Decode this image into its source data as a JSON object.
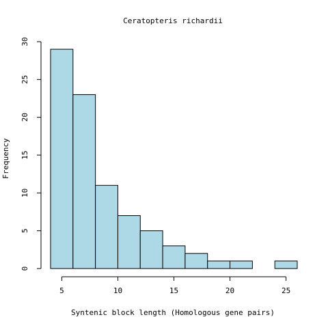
{
  "chart_data": {
    "type": "bar",
    "title": "Ceratopteris richardii",
    "xlabel": "Syntenic block length (Homologous gene pairs)",
    "ylabel": "Frequency",
    "bins": [
      {
        "from": 4,
        "to": 6,
        "count": 29
      },
      {
        "from": 6,
        "to": 8,
        "count": 23
      },
      {
        "from": 8,
        "to": 10,
        "count": 11
      },
      {
        "from": 10,
        "to": 12,
        "count": 7
      },
      {
        "from": 12,
        "to": 14,
        "count": 5
      },
      {
        "from": 14,
        "to": 16,
        "count": 3
      },
      {
        "from": 16,
        "to": 18,
        "count": 2
      },
      {
        "from": 18,
        "to": 20,
        "count": 1
      },
      {
        "from": 20,
        "to": 22,
        "count": 1
      },
      {
        "from": 22,
        "to": 24,
        "count": 0
      },
      {
        "from": 24,
        "to": 26,
        "count": 1
      }
    ],
    "xlim": [
      4,
      26
    ],
    "ylim": [
      0,
      30
    ],
    "xticks": [
      5,
      10,
      15,
      20,
      25
    ],
    "yticks": [
      0,
      5,
      10,
      15,
      20,
      25,
      30
    ],
    "grid": false,
    "colors": {
      "bar_fill": "#add8e6",
      "bar_stroke": "#000000"
    }
  }
}
